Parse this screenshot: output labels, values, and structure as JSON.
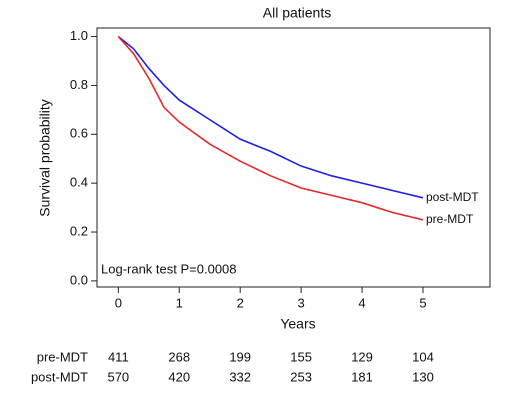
{
  "chart_data": {
    "type": "line",
    "title": "All patients",
    "x_label": "Years",
    "y_label": "Survival probability",
    "annotation": "Log-rank test P=0.0008",
    "x": [
      0,
      0.25,
      0.5,
      0.75,
      1,
      1.5,
      2,
      2.5,
      3,
      3.5,
      4,
      4.5,
      5
    ],
    "series": [
      {
        "name": "post-MDT",
        "color": "#1f1fe6",
        "values": [
          1.0,
          0.95,
          0.87,
          0.8,
          0.74,
          0.66,
          0.58,
          0.53,
          0.47,
          0.43,
          0.4,
          0.37,
          0.34
        ]
      },
      {
        "name": "pre-MDT",
        "color": "#e6282a",
        "values": [
          1.0,
          0.93,
          0.83,
          0.71,
          0.65,
          0.56,
          0.49,
          0.43,
          0.38,
          0.35,
          0.32,
          0.28,
          0.25
        ]
      }
    ],
    "xlim": [
      -0.35,
      6.1
    ],
    "ylim": [
      -0.025,
      1.035
    ],
    "xticks": [
      0,
      1,
      2,
      3,
      4,
      5
    ],
    "yticks": [
      {
        "value": 0,
        "label": "0.0"
      },
      0.2,
      0.4,
      0.6,
      0.8,
      {
        "value": 1,
        "label": "1.0"
      }
    ],
    "risk_table": [
      {
        "name": "pre-MDT",
        "values": [
          411,
          268,
          199,
          155,
          129,
          104
        ]
      },
      {
        "name": "post-MDT",
        "values": [
          570,
          420,
          332,
          253,
          181,
          130
        ]
      }
    ]
  }
}
